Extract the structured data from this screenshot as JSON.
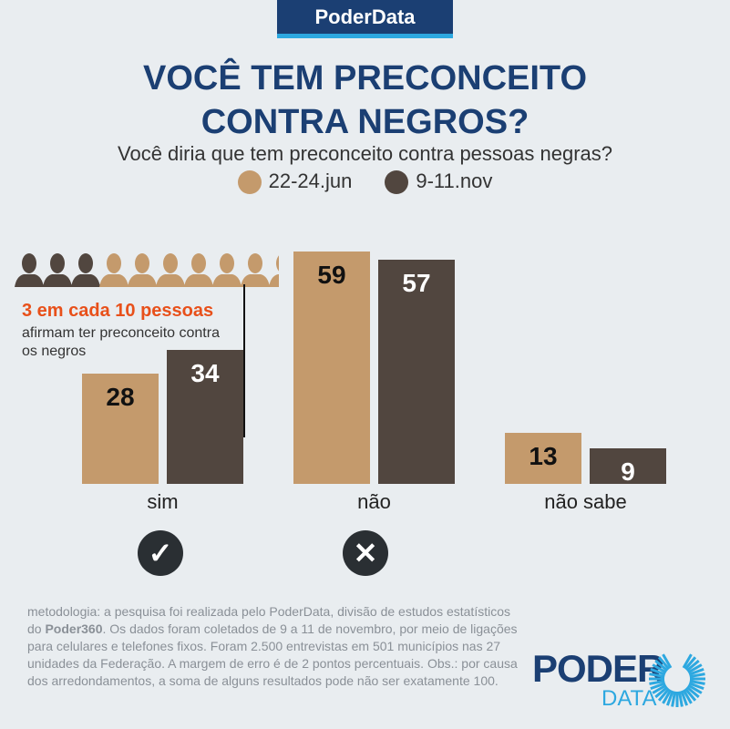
{
  "brand": "PoderData",
  "title_line1": "VOCÊ TEM PRECONCEITO",
  "title_line2": "CONTRA NEGROS?",
  "subtitle": "Você diria que tem preconceito contra pessoas negras?",
  "annotation": {
    "highlight": "3 em cada 10 pessoas",
    "text": "afirmam ter preconceito contra os negros",
    "people_total": 10,
    "people_highlighted": 3
  },
  "methodology_prefix": "metodologia: a pesquisa foi realizada pelo PoderData, divisão de estudos estatísticos do ",
  "methodology_bold": "Poder360",
  "methodology_suffix": ". Os dados foram coletados de 9 a 11 de novembro, por meio de ligações para celulares e telefones fixos. Foram 2.500 entrevistas em 501 municípios nas 27 unidades da Federação. A margem de erro é de 2 pontos percentuais. Obs.: por causa dos arredondamentos, a soma de alguns resultados pode não ser exatamente 100.",
  "logo": {
    "line1": "PODER",
    "line2": "DATA"
  },
  "colors": {
    "jun": "#c49a6c",
    "nov": "#51463f",
    "navy": "#1b3f73",
    "accent": "#e8501a",
    "blue": "#2da8e0"
  },
  "icons": [
    "check-icon",
    "x-icon"
  ],
  "chart_data": {
    "type": "bar",
    "title": "VOCÊ TEM PRECONCEITO CONTRA NEGROS?",
    "categories": [
      "sim",
      "não",
      "não sabe"
    ],
    "series": [
      {
        "name": "22-24.jun",
        "values": [
          28,
          59,
          13
        ]
      },
      {
        "name": "9-11.nov",
        "values": [
          34,
          57,
          9
        ]
      }
    ],
    "ylim": [
      0,
      59
    ],
    "legend": "top-center"
  }
}
